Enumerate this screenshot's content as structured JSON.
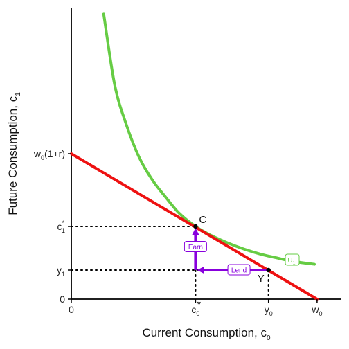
{
  "chart_data": {
    "type": "line",
    "title": "",
    "xlabel": "Current Consumption, c",
    "xlabel_sub": "0",
    "ylabel": "Future Consumption, c",
    "ylabel_sub": "1",
    "xlim": [
      0,
      10
    ],
    "ylim": [
      0,
      10
    ],
    "x_ticks": [
      {
        "value": 0,
        "label": "0",
        "sub": "",
        "sup": ""
      },
      {
        "value": 4.6,
        "label": "c",
        "sub": "0",
        "sup": "*"
      },
      {
        "value": 7.3,
        "label": "y",
        "sub": "0",
        "sup": ""
      },
      {
        "value": 9.1,
        "label": "w",
        "sub": "0",
        "sup": ""
      }
    ],
    "y_ticks": [
      {
        "value": 0,
        "label": "0",
        "sub": "",
        "sup": ""
      },
      {
        "value": 1.0,
        "label": "y",
        "sub": "1",
        "sup": ""
      },
      {
        "value": 2.5,
        "label": "c",
        "sub": "1",
        "sup": "*"
      },
      {
        "value": 5.0,
        "label": "w",
        "sub": "0",
        "sup": "",
        "suffix": "(1+r)"
      }
    ],
    "budget_line": {
      "x": [
        0,
        9.1
      ],
      "y": [
        5.0,
        0
      ],
      "color": "#ee1111"
    },
    "indifference_curve": {
      "name": "U",
      "name_sub": "1",
      "color": "#66cc44",
      "x": [
        1.2,
        1.6,
        2.0,
        2.5,
        3.0,
        3.5,
        4.0,
        4.6,
        5.2,
        5.8,
        6.4,
        7.0,
        7.6,
        8.2,
        9.0
      ],
      "y": [
        9.8,
        7.4,
        6.1,
        4.9,
        4.1,
        3.5,
        2.95,
        2.5,
        2.18,
        1.93,
        1.72,
        1.55,
        1.42,
        1.3,
        1.2
      ]
    },
    "points": [
      {
        "name": "C",
        "x": 4.6,
        "y": 2.5
      },
      {
        "name": "Y",
        "x": 7.3,
        "y": 1.0
      }
    ],
    "arrows": [
      {
        "label": "Lend",
        "from": [
          7.3,
          1.0
        ],
        "to": [
          4.6,
          1.0
        ],
        "color": "#8800dd"
      },
      {
        "label": "Earn",
        "from": [
          4.6,
          1.0
        ],
        "to": [
          4.6,
          2.5
        ],
        "color": "#8800dd"
      }
    ],
    "grid": false
  }
}
